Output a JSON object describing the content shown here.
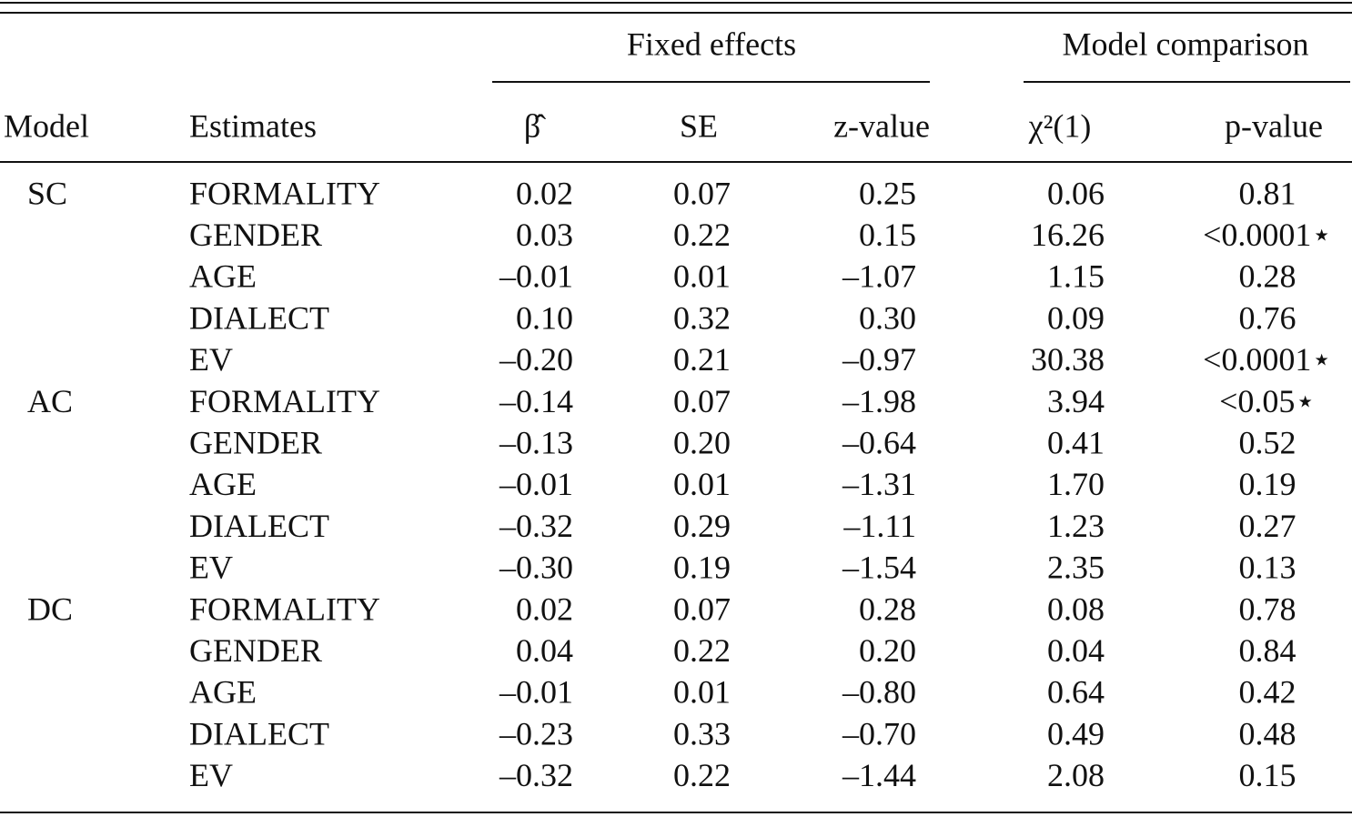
{
  "table": {
    "group_headers": [
      "Fixed effects",
      "Model comparison"
    ],
    "headers": [
      "Model",
      "Estimates",
      "β̂",
      "SE",
      "z-value",
      "χ²(1)",
      "p-value"
    ],
    "groups": [
      {
        "model": "SC",
        "rows": [
          [
            "FORMALITY",
            "0.02",
            "0.07",
            "0.25",
            "0.06",
            "0.81"
          ],
          [
            "GENDER",
            "0.03",
            "0.22",
            "0.15",
            "16.26",
            "<0.0001⋆"
          ],
          [
            "AGE",
            "–0.01",
            "0.01",
            "–1.07",
            "1.15",
            "0.28"
          ],
          [
            "DIALECT",
            "0.10",
            "0.32",
            "0.30",
            "0.09",
            "0.76"
          ],
          [
            "EV",
            "–0.20",
            "0.21",
            "–0.97",
            "30.38",
            "<0.0001⋆"
          ]
        ]
      },
      {
        "model": "AC",
        "rows": [
          [
            "FORMALITY",
            "–0.14",
            "0.07",
            "–1.98",
            "3.94",
            "<0.05⋆"
          ],
          [
            "GENDER",
            "–0.13",
            "0.20",
            "–0.64",
            "0.41",
            "0.52"
          ],
          [
            "AGE",
            "–0.01",
            "0.01",
            "–1.31",
            "1.70",
            "0.19"
          ],
          [
            "DIALECT",
            "–0.32",
            "0.29",
            "–1.11",
            "1.23",
            "0.27"
          ],
          [
            "EV",
            "–0.30",
            "0.19",
            "–1.54",
            "2.35",
            "0.13"
          ]
        ]
      },
      {
        "model": "DC",
        "rows": [
          [
            "FORMALITY",
            "0.02",
            "0.07",
            "0.28",
            "0.08",
            "0.78"
          ],
          [
            "GENDER",
            "0.04",
            "0.22",
            "0.20",
            "0.04",
            "0.84"
          ],
          [
            "AGE",
            "–0.01",
            "0.01",
            "–0.80",
            "0.64",
            "0.42"
          ],
          [
            "DIALECT",
            "–0.23",
            "0.33",
            "–0.70",
            "0.49",
            "0.48"
          ],
          [
            "EV",
            "–0.32",
            "0.22",
            "–1.44",
            "2.08",
            "0.15"
          ]
        ]
      }
    ]
  }
}
